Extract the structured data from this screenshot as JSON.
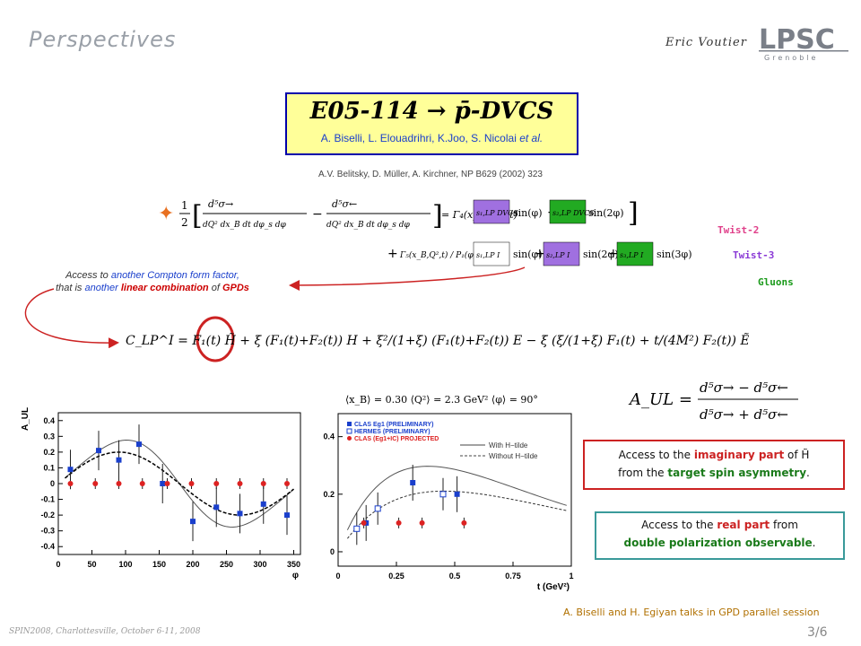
{
  "header": {
    "title": "Perspectives",
    "author": "Eric Voutier"
  },
  "logo": {
    "name": "LPSC",
    "subtitle": "Grenoble"
  },
  "experiment": {
    "title": "E05-114 → p̄-DVCS",
    "authors_prefix": "A. Biselli, L. Elouadrihri, K.Joo, S. Nicolai ",
    "authors_suffix": "et al."
  },
  "reference": "A.V. Belitsky, D. Müller, A. Kirchner, NP B629 (2002) 323",
  "formula_main": {
    "lhs_prefix": "1/2",
    "num_right": "d⁵σ→",
    "num_left": "d⁵σ←",
    "den": "dQ² dx_B dt dφ_s dφ",
    "gamma4": "= Γ₄(x_B, Q², t)",
    "dvcs1": "s₁,LP DVCS",
    "dvcs2": "s₂,LP DVCS",
    "sin1": "sin(φ)",
    "sin2": "sin(2φ)",
    "gamma5": "Γ₅(x_B,Q²,t) / P₁(φ)P₂(φ)",
    "s1": "s₁,LP I",
    "s2": "s₂,LP I",
    "s3": "s₃,LP I",
    "sin3": "sin(3φ)"
  },
  "labels": {
    "twist2": "Twist-2",
    "twist3": "Twist-3",
    "gluons": "Gluons"
  },
  "compton_note": {
    "l1a": "Access to ",
    "l1b": "another",
    "l1c": " Compton form factor,",
    "l2a": "that is ",
    "l2b": "another",
    "l2c": " linear combination",
    "l2d": " of ",
    "l2e": "GPDs"
  },
  "formula_clp": "C_LP^I = F₁(t) H̃ + ξ (F₁(t)+F₂(t)) H + ξ²/(1+ξ) (F₁(t)+F₂(t)) E − ξ (ξ/(1+ξ) F₁(t) + t/(4M²) F₂(t)) Ẽ",
  "formula_aul": {
    "lhs": "A_UL =",
    "num": "d⁵σ→ − d⁵σ←",
    "den": "d⁵σ→ + d⁵σ←"
  },
  "kinematics": "⟨x_B⟩ = 0.30   ⟨Q²⟩ = 2.3 GeV²   ⟨φ⟩ = 90°",
  "chart_data": [
    {
      "type": "scatter",
      "ylabel": "A_UL",
      "xlabel": "φ",
      "xlim": [
        0,
        360
      ],
      "ylim": [
        -0.45,
        0.45
      ],
      "xticks": [
        0,
        50,
        100,
        150,
        200,
        250,
        300,
        350
      ],
      "yticks": [
        -0.4,
        -0.3,
        -0.2,
        -0.1,
        0,
        0.1,
        0.2,
        0.3,
        0.4
      ],
      "series": [
        {
          "color": "#1a3fcc",
          "x": [
            18,
            60,
            90,
            120,
            155,
            200,
            235,
            270,
            305,
            340
          ],
          "y": [
            0.09,
            0.21,
            0.15,
            0.25,
            0.0,
            -0.24,
            -0.15,
            -0.19,
            -0.13,
            -0.2
          ]
        },
        {
          "color": "#dd2222",
          "x": [
            18,
            55,
            90,
            125,
            162,
            198,
            235,
            270,
            305,
            340
          ],
          "y": [
            0.0,
            0.0,
            0.0,
            0.0,
            0.0,
            0.0,
            0.0,
            0.0,
            0.0,
            0.0
          ]
        }
      ]
    },
    {
      "type": "scatter",
      "ylabel": "A_UL",
      "xlabel": "t (GeV²)",
      "xlim": [
        0,
        1
      ],
      "ylim": [
        -0.05,
        0.48
      ],
      "xticks": [
        0,
        0.25,
        0.5,
        0.75,
        1
      ],
      "yticks": [
        0,
        0.2,
        0.4
      ],
      "legend": [
        "CLAS Eg1 (PRELIMINARY)",
        "HERMES (PRELIMINARY)",
        "CLAS (Eg1+IC) PROJECTED"
      ],
      "curves": [
        "With H−tilde",
        "Without H−tilde"
      ],
      "series": [
        {
          "name": "CLAS Eg1 (PRELIMINARY)",
          "color": "#1a3fcc",
          "x": [
            0.12,
            0.32,
            0.51
          ],
          "y": [
            0.1,
            0.24,
            0.2
          ]
        },
        {
          "name": "HERMES (PRELIMINARY)",
          "color": "#1a3fcc",
          "x": [
            0.08,
            0.17,
            0.45
          ],
          "y": [
            0.08,
            0.15,
            0.2
          ]
        },
        {
          "name": "CLAS (Eg1+IC) PROJECTED",
          "color": "#dd2222",
          "x": [
            0.11,
            0.26,
            0.36,
            0.54
          ],
          "y": [
            0.1,
            0.1,
            0.1,
            0.1
          ]
        }
      ]
    }
  ],
  "box_imag": {
    "l1a": "Access to the ",
    "l1b": "imaginary part",
    "l1c": " of H̃",
    "l2a": "from the ",
    "l2b": "target spin asymmetry",
    "l2c": "."
  },
  "box_real": {
    "l1a": "Access to the ",
    "l1b": "real part",
    "l1c": " from",
    "l2a": "double polarization observable",
    "l2b": "."
  },
  "talks": "A. Biselli and H. Egiyan talks in GPD parallel session",
  "footer": {
    "conference": "SPIN2008, Charlottesville, October 6-11, 2008",
    "page": "3/6"
  }
}
